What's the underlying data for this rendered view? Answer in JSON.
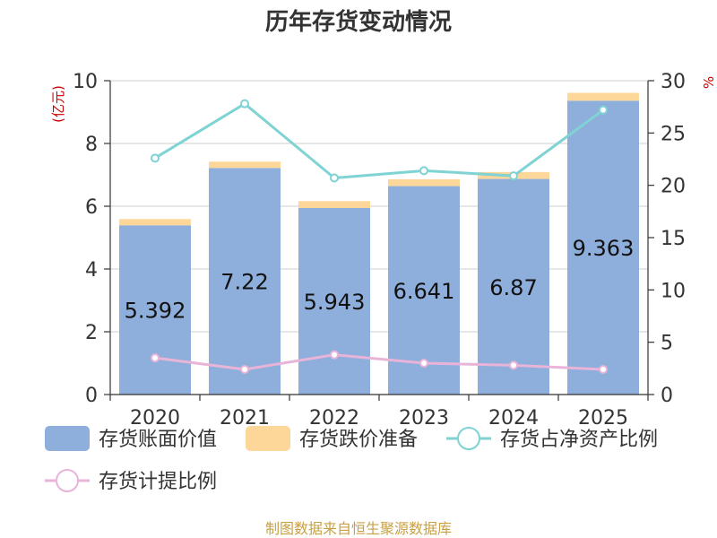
{
  "chart_data": {
    "type": "bar",
    "title": "历年存货变动情况",
    "categories": [
      "2020",
      "2021",
      "2022",
      "2023",
      "2024",
      "2025"
    ],
    "left_axis": {
      "unit": "(亿元)",
      "ylim": [
        0,
        10
      ],
      "ticks": [
        "0",
        "2",
        "4",
        "6",
        "8",
        "10"
      ]
    },
    "right_axis": {
      "unit": "%",
      "ylim": [
        0,
        30
      ],
      "ticks": [
        "0",
        "5",
        "10",
        "15",
        "20",
        "25",
        "30"
      ]
    },
    "series": [
      {
        "name": "存货账面价值",
        "type": "bar",
        "axis": "left",
        "color": "#8eaedb",
        "values": [
          5.392,
          7.22,
          5.943,
          6.641,
          6.87,
          9.363
        ],
        "labels": [
          "5.392",
          "7.22",
          "5.943",
          "6.641",
          "6.87",
          "9.363"
        ]
      },
      {
        "name": "存货跌价准备",
        "type": "bar",
        "axis": "left",
        "stacked": true,
        "color": "#fdd79a",
        "values": [
          0.2,
          0.2,
          0.22,
          0.22,
          0.22,
          0.25
        ]
      },
      {
        "name": "存货占净资产比例",
        "type": "line",
        "axis": "right",
        "color": "#7fd3d3",
        "values": [
          22.6,
          27.8,
          20.7,
          21.4,
          20.9,
          27.2
        ]
      },
      {
        "name": "存货计提比例",
        "type": "line",
        "axis": "right",
        "color": "#e8b4d8",
        "values": [
          3.5,
          2.4,
          3.8,
          3.0,
          2.8,
          2.4
        ]
      }
    ],
    "grid": true,
    "legend_position": "bottom",
    "source": "制图数据来自恒生聚源数据库"
  }
}
